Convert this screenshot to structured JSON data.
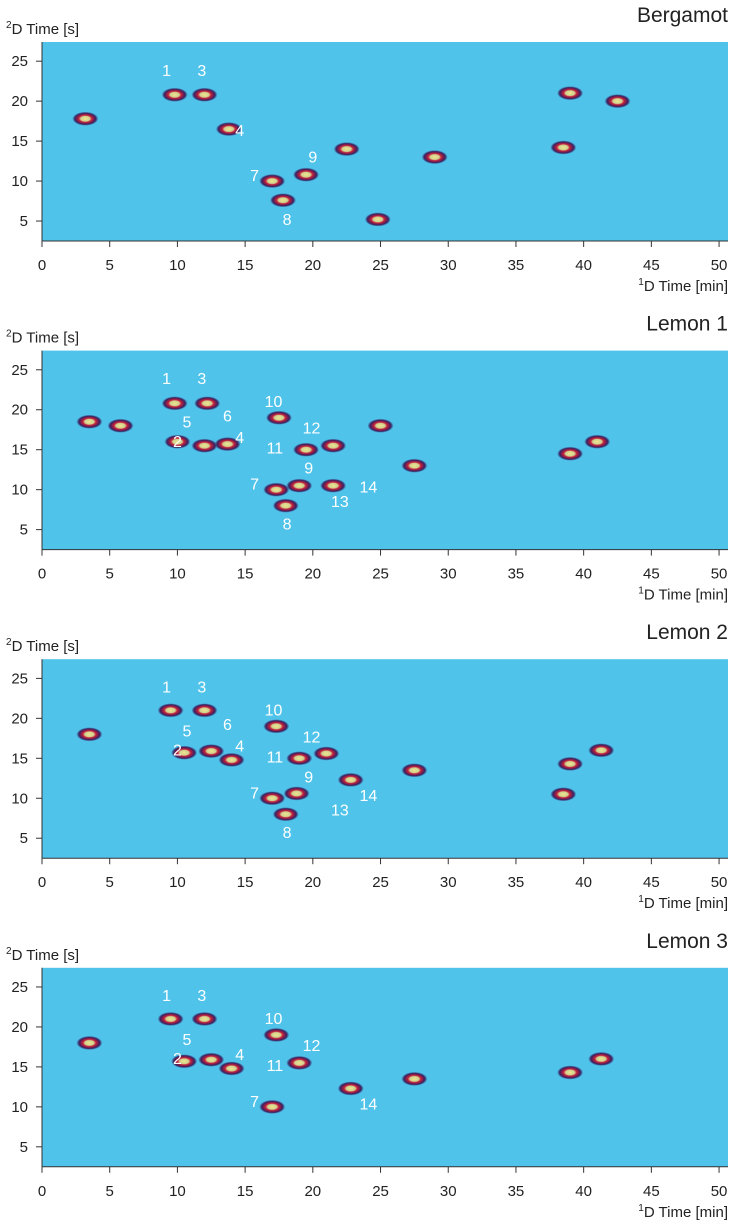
{
  "chart_data": [
    {
      "type": "heatmap",
      "title": "Bergamot",
      "xlabel": {
        "sup": "1",
        "text": "D Time [min]"
      },
      "ylabel": {
        "sup": "2",
        "text": "D Time [s]"
      },
      "xlim": [
        0,
        50.66
      ],
      "ylim": [
        2.5,
        27.4
      ],
      "xticks": [
        0,
        5,
        10,
        15,
        20,
        25,
        30,
        35,
        40,
        45,
        50
      ],
      "yticks": [
        5,
        10,
        15,
        20,
        25
      ],
      "background": "#4fc3ea",
      "peaks": {
        "x": [
          9.8,
          12.0,
          13.8,
          17.0,
          19.5,
          17.8,
          42.5,
          39.0,
          29.0,
          38.5,
          22.5,
          24.8,
          3.2
        ],
        "y": [
          20.8,
          20.8,
          16.5,
          10.0,
          10.8,
          7.6,
          20.0,
          21.0,
          13.0,
          14.2,
          14.0,
          5.2,
          17.8
        ]
      },
      "annotations": [
        {
          "text": "1",
          "x": 9.2,
          "y": 23.9
        },
        {
          "text": "3",
          "x": 11.8,
          "y": 23.9
        },
        {
          "text": "4",
          "x": 14.6,
          "y": 16.4
        },
        {
          "text": "7",
          "x": 15.7,
          "y": 10.75
        },
        {
          "text": "9",
          "x": 20.0,
          "y": 13.1
        },
        {
          "text": "8",
          "x": 18.1,
          "y": 5.25
        }
      ]
    },
    {
      "type": "heatmap",
      "title": "Lemon 1",
      "xlabel": {
        "sup": "1",
        "text": "D Time [min]"
      },
      "ylabel": {
        "sup": "2",
        "text": "D Time [s]"
      },
      "xlim": [
        0,
        50.66
      ],
      "ylim": [
        2.5,
        27.4
      ],
      "xticks": [
        0,
        5,
        10,
        15,
        20,
        25,
        30,
        35,
        40,
        45,
        50
      ],
      "yticks": [
        5,
        10,
        15,
        20,
        25
      ],
      "background": "#4fc3ea",
      "peaks": {
        "x": [
          9.8,
          12.2,
          17.5,
          10.0,
          12.0,
          13.7,
          19.5,
          21.5,
          17.3,
          19.0,
          18.0,
          21.5,
          25.0,
          41.0,
          39.0,
          3.5,
          5.8,
          27.5
        ],
        "y": [
          20.8,
          20.8,
          19.0,
          16.0,
          15.5,
          15.7,
          15.0,
          15.5,
          10.0,
          10.5,
          8.0,
          10.5,
          18.0,
          16.0,
          14.5,
          18.5,
          18.0,
          13.0
        ]
      },
      "annotations": [
        {
          "text": "1",
          "x": 9.2,
          "y": 24.0
        },
        {
          "text": "3",
          "x": 11.8,
          "y": 24.0
        },
        {
          "text": "10",
          "x": 17.1,
          "y": 21.1
        },
        {
          "text": "5",
          "x": 10.7,
          "y": 18.5
        },
        {
          "text": "6",
          "x": 13.7,
          "y": 19.3
        },
        {
          "text": "12",
          "x": 19.9,
          "y": 17.75
        },
        {
          "text": "2",
          "x": 10.0,
          "y": 16.1
        },
        {
          "text": "4",
          "x": 14.6,
          "y": 16.6
        },
        {
          "text": "11",
          "x": 17.2,
          "y": 15.25
        },
        {
          "text": "9",
          "x": 19.7,
          "y": 12.75
        },
        {
          "text": "14",
          "x": 24.1,
          "y": 10.4
        },
        {
          "text": "7",
          "x": 15.7,
          "y": 10.75
        },
        {
          "text": "13",
          "x": 22.0,
          "y": 8.6
        },
        {
          "text": "8",
          "x": 18.1,
          "y": 5.75
        }
      ]
    },
    {
      "type": "heatmap",
      "title": "Lemon 2",
      "xlabel": {
        "sup": "1",
        "text": "D Time [min]"
      },
      "ylabel": {
        "sup": "2",
        "text": "D Time [s]"
      },
      "xlim": [
        0,
        50.66
      ],
      "ylim": [
        2.5,
        27.4
      ],
      "xticks": [
        0,
        5,
        10,
        15,
        20,
        25,
        30,
        35,
        40,
        45,
        50
      ],
      "yticks": [
        5,
        10,
        15,
        20,
        25
      ],
      "background": "#4fc3ea",
      "peaks": {
        "x": [
          9.5,
          12.0,
          17.3,
          10.5,
          12.5,
          14.0,
          19.0,
          21.0,
          17.0,
          18.8,
          18.0,
          22.8,
          27.5,
          41.3,
          39.0,
          3.5,
          38.5
        ],
        "y": [
          21.0,
          21.0,
          19.0,
          15.7,
          15.9,
          14.8,
          15.0,
          15.6,
          10.0,
          10.6,
          8.0,
          12.3,
          13.5,
          16.0,
          14.3,
          18.0,
          10.5
        ]
      },
      "annotations": [
        {
          "text": "1",
          "x": 9.2,
          "y": 24.0
        },
        {
          "text": "3",
          "x": 11.8,
          "y": 24.0
        },
        {
          "text": "10",
          "x": 17.1,
          "y": 21.1
        },
        {
          "text": "5",
          "x": 10.7,
          "y": 18.5
        },
        {
          "text": "6",
          "x": 13.7,
          "y": 19.3
        },
        {
          "text": "12",
          "x": 19.9,
          "y": 17.75
        },
        {
          "text": "2",
          "x": 10.0,
          "y": 16.1
        },
        {
          "text": "4",
          "x": 14.6,
          "y": 16.6
        },
        {
          "text": "11",
          "x": 17.2,
          "y": 15.25
        },
        {
          "text": "9",
          "x": 19.7,
          "y": 12.75
        },
        {
          "text": "14",
          "x": 24.1,
          "y": 10.4
        },
        {
          "text": "7",
          "x": 15.7,
          "y": 10.75
        },
        {
          "text": "13",
          "x": 22.0,
          "y": 8.6
        },
        {
          "text": "8",
          "x": 18.1,
          "y": 5.75
        }
      ]
    },
    {
      "type": "heatmap",
      "title": "Lemon 3",
      "xlabel": {
        "sup": "1",
        "text": "D Time [min]"
      },
      "ylabel": {
        "sup": "2",
        "text": "D Time [s]"
      },
      "xlim": [
        0,
        50.66
      ],
      "ylim": [
        2.5,
        27.4
      ],
      "xticks": [
        0,
        5,
        10,
        15,
        20,
        25,
        30,
        35,
        40,
        45,
        50
      ],
      "yticks": [
        5,
        10,
        15,
        20,
        25
      ],
      "background": "#4fc3ea",
      "peaks": {
        "x": [
          9.5,
          12.0,
          17.3,
          10.5,
          12.5,
          14.0,
          19.0,
          17.0,
          22.8,
          27.5,
          41.3,
          39.0,
          3.5
        ],
        "y": [
          21.0,
          21.0,
          19.0,
          15.7,
          15.9,
          14.8,
          15.5,
          10.0,
          12.3,
          13.5,
          16.0,
          14.3,
          18.0
        ]
      },
      "annotations": [
        {
          "text": "1",
          "x": 9.2,
          "y": 24.0
        },
        {
          "text": "3",
          "x": 11.8,
          "y": 24.0
        },
        {
          "text": "10",
          "x": 17.1,
          "y": 21.1
        },
        {
          "text": "5",
          "x": 10.7,
          "y": 18.5
        },
        {
          "text": "12",
          "x": 19.9,
          "y": 17.75
        },
        {
          "text": "2",
          "x": 10.0,
          "y": 16.1
        },
        {
          "text": "4",
          "x": 14.6,
          "y": 16.6
        },
        {
          "text": "11",
          "x": 17.2,
          "y": 15.25
        },
        {
          "text": "14",
          "x": 24.1,
          "y": 10.4
        },
        {
          "text": "7",
          "x": 15.7,
          "y": 10.75
        }
      ]
    }
  ]
}
